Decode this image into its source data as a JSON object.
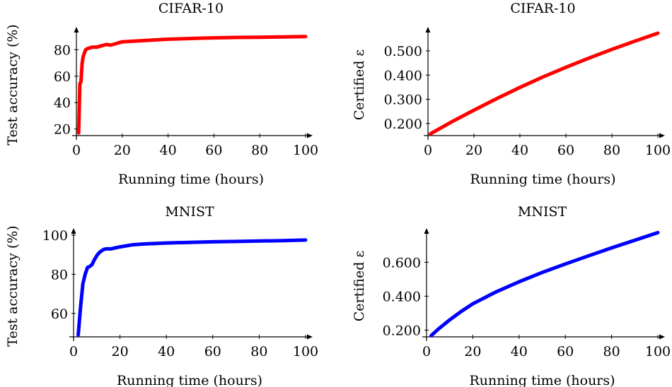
{
  "chart_data": [
    {
      "type": "line",
      "title": "CIFAR-10",
      "xlabel": "Running time (hours)",
      "ylabel": "Test accuracy (%)",
      "xlim": [
        0,
        100
      ],
      "ylim": [
        15,
        92
      ],
      "xticks": [
        "0",
        "20",
        "40",
        "60",
        "80",
        "100"
      ],
      "xtick_values": [
        0,
        20,
        40,
        60,
        80,
        100
      ],
      "yticks": [
        "20",
        "40",
        "60",
        "80"
      ],
      "ytick_values": [
        20,
        40,
        60,
        80
      ],
      "series": [
        {
          "color": "#ff0000",
          "x": [
            1,
            1.5,
            2,
            2.5,
            3,
            4,
            5,
            7,
            9,
            11,
            13,
            15,
            17,
            20,
            25,
            30,
            35,
            40,
            50,
            55,
            60,
            70,
            80,
            90,
            100
          ],
          "y": [
            17,
            54,
            56,
            70,
            75,
            80,
            81,
            82,
            82,
            83,
            84,
            83.5,
            84.5,
            86,
            86.5,
            87,
            87.5,
            88,
            88.5,
            88.8,
            89,
            89.3,
            89.5,
            89.7,
            90
          ]
        }
      ]
    },
    {
      "type": "line",
      "title": "CIFAR-10",
      "xlabel": "Running time (hours)",
      "ylabel": "Certified ε",
      "xlim": [
        0,
        100
      ],
      "ylim": [
        0.15,
        0.57
      ],
      "xticks": [
        "0",
        "20",
        "40",
        "60",
        "80",
        "100"
      ],
      "xtick_values": [
        0,
        20,
        40,
        60,
        80,
        100
      ],
      "yticks": [
        "0.200",
        "0.300",
        "0.400",
        "0.500"
      ],
      "ytick_values": [
        0.2,
        0.3,
        0.4,
        0.5
      ],
      "series": [
        {
          "color": "#ff0000",
          "x": [
            1,
            10,
            20,
            30,
            40,
            50,
            60,
            70,
            80,
            90,
            100
          ],
          "y": [
            0.157,
            0.205,
            0.255,
            0.303,
            0.349,
            0.392,
            0.432,
            0.47,
            0.506,
            0.54,
            0.573
          ]
        }
      ]
    },
    {
      "type": "line",
      "title": "MNIST",
      "xlabel": "Running time (hours)",
      "ylabel": "Test accuracy (%)",
      "xlim": [
        0,
        100
      ],
      "ylim": [
        48,
        100
      ],
      "xticks": [
        "0",
        "20",
        "40",
        "60",
        "80",
        "100"
      ],
      "xtick_values": [
        0,
        20,
        40,
        60,
        80,
        100
      ],
      "yticks": [
        "60",
        "80",
        "100"
      ],
      "ytick_values": [
        60,
        80,
        100
      ],
      "series": [
        {
          "color": "#0000ff",
          "x": [
            2,
            3,
            4,
            5,
            6,
            7,
            8,
            9,
            10,
            11,
            12,
            13,
            14,
            16,
            18,
            20,
            25,
            30,
            40,
            50,
            60,
            70,
            80,
            90,
            100
          ],
          "y": [
            49,
            63,
            75,
            80,
            83.5,
            84,
            85,
            87.5,
            89.5,
            91,
            92,
            92.7,
            93,
            93,
            93.5,
            94,
            95,
            95.5,
            96,
            96.3,
            96.6,
            96.8,
            97,
            97.2,
            97.5
          ]
        }
      ]
    },
    {
      "type": "line",
      "title": "MNIST",
      "xlabel": "Running time (hours)",
      "ylabel": "Certified ε",
      "xlim": [
        0,
        100
      ],
      "ylim": [
        0.16,
        0.76
      ],
      "xticks": [
        "0",
        "20",
        "40",
        "60",
        "80",
        "100"
      ],
      "xtick_values": [
        0,
        20,
        40,
        60,
        80,
        100
      ],
      "yticks": [
        "0.200",
        "0.400",
        "0.600"
      ],
      "ytick_values": [
        0.2,
        0.4,
        0.6
      ],
      "series": [
        {
          "color": "#0000ff",
          "x": [
            2,
            5,
            10,
            15,
            20,
            30,
            40,
            50,
            60,
            70,
            80,
            90,
            100
          ],
          "y": [
            0.167,
            0.205,
            0.26,
            0.31,
            0.355,
            0.425,
            0.485,
            0.54,
            0.59,
            0.638,
            0.685,
            0.73,
            0.775
          ]
        }
      ]
    }
  ]
}
